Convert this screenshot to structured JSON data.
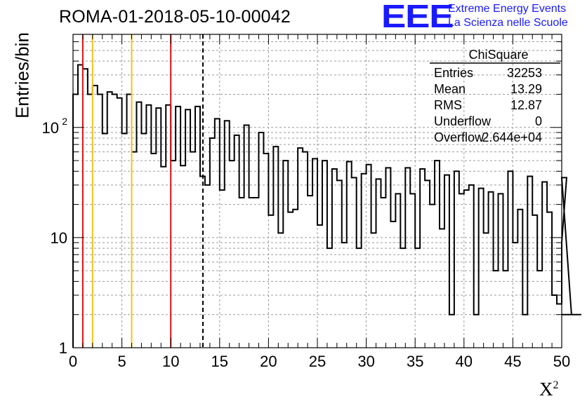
{
  "header": {
    "title": "ROMA-01-2018-05-10-00042",
    "logo_text": "EEE",
    "logo_line1": "Extreme Energy Events",
    "logo_line2": "La Scienza nelle Scuole"
  },
  "colors": {
    "logo": "#1a1aff",
    "red_line": "#dd1111",
    "yellow_line": "#f2c21b",
    "grid": "#9a9a9a"
  },
  "stats": {
    "title": "ChiSquare",
    "rows": [
      {
        "label": "Entries",
        "value": "32253"
      },
      {
        "label": "Mean",
        "value": "13.29"
      },
      {
        "label": "RMS",
        "value": "12.87"
      },
      {
        "label": "Underflow",
        "value": "0"
      },
      {
        "label": "Overflow",
        "value": "2.644e+04"
      }
    ]
  },
  "chart_data": {
    "type": "histogram",
    "xlabel": "X",
    "xlabel_sup": "2",
    "ylabel": "Entries/bin",
    "xlim": [
      0,
      50
    ],
    "ylim": [
      1,
      700
    ],
    "log_y": true,
    "grid": true,
    "bin_width": 0.5,
    "x_ticks": [
      "0",
      "5",
      "10",
      "15",
      "20",
      "25",
      "30",
      "35",
      "40",
      "45",
      "50"
    ],
    "y_ticks": [
      {
        "value": 1,
        "label": "1"
      },
      {
        "value": 10,
        "label": "10"
      },
      {
        "value": 100,
        "label": "10",
        "exp": "2"
      }
    ],
    "vertical_lines": [
      {
        "x": 1.0,
        "color": "red",
        "style": "solid"
      },
      {
        "x": 2.0,
        "color": "yellow",
        "style": "solid"
      },
      {
        "x": 6.0,
        "color": "yellow",
        "style": "solid"
      },
      {
        "x": 10.0,
        "color": "red",
        "style": "solid"
      },
      {
        "x": 13.29,
        "color": "black",
        "style": "dashed"
      }
    ],
    "values": [
      200,
      370,
      340,
      200,
      240,
      200,
      88,
      210,
      200,
      185,
      88,
      200,
      60,
      170,
      88,
      160,
      58,
      150,
      44,
      160,
      50,
      155,
      45,
      145,
      60,
      155,
      36,
      30,
      80,
      120,
      27,
      115,
      50,
      85,
      23,
      105,
      23,
      23,
      90,
      58,
      16,
      67,
      11,
      50,
      17,
      18,
      65,
      60,
      24,
      52,
      13,
      50,
      8,
      42,
      33,
      9,
      49,
      35,
      8,
      38,
      46,
      11,
      34,
      23,
      43,
      14,
      25,
      8,
      43,
      25,
      8,
      42,
      33,
      20,
      50,
      12,
      37,
      2,
      40,
      25,
      27,
      30,
      2,
      28,
      11,
      26,
      5,
      25,
      5,
      40,
      9,
      18,
      2,
      36,
      16,
      5,
      32,
      17,
      3,
      2.5
    ],
    "trailing_values": [
      9,
      35,
      2,
      2,
      2
    ]
  }
}
